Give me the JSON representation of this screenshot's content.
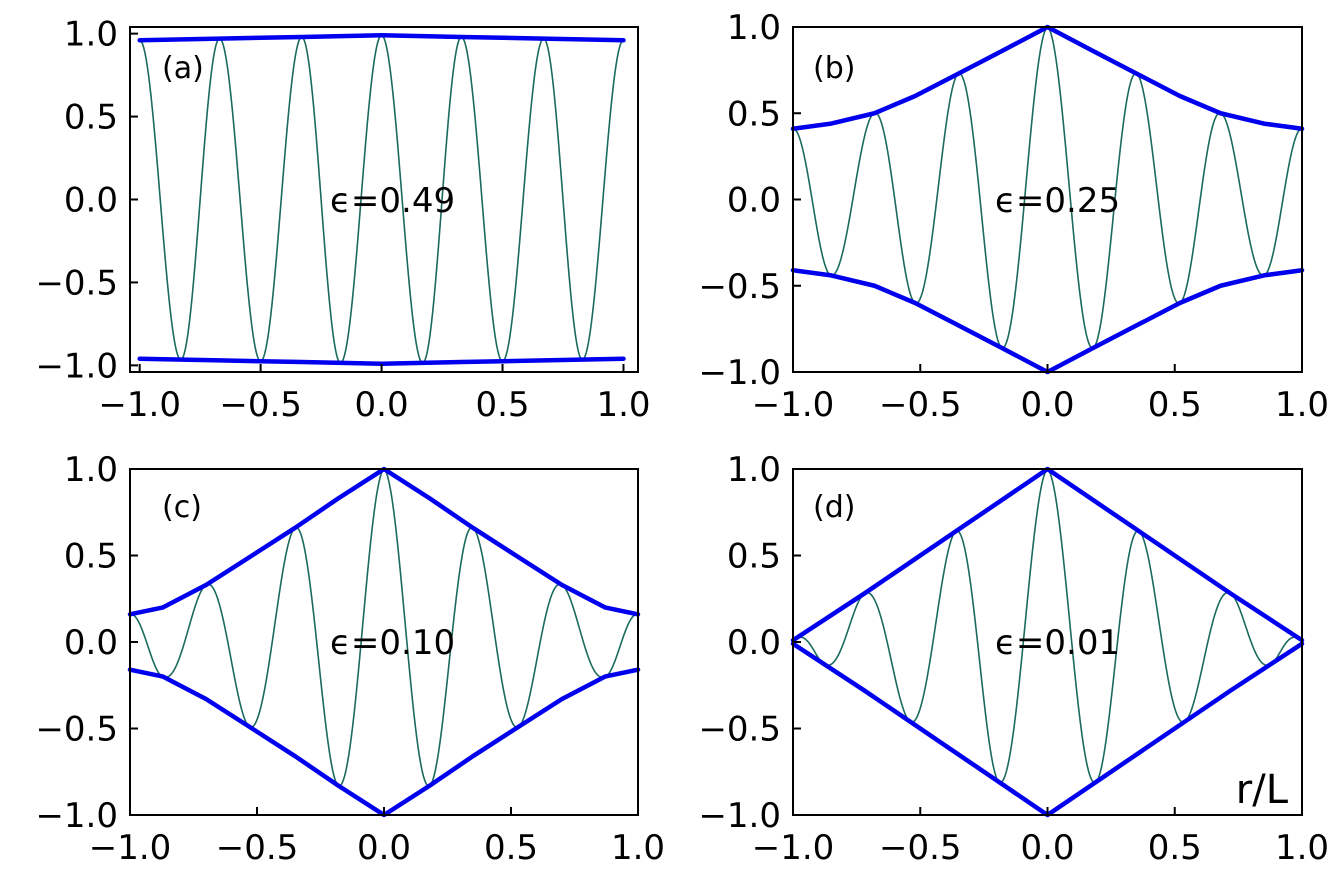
{
  "chart_data": [
    {
      "type": "line",
      "panel_label": "(a)",
      "annotation": "ϵ=0.49",
      "epsilon": 0.49,
      "xlabel": "",
      "ylabel": "",
      "xlim": [
        -1.0,
        1.0
      ],
      "ylim": [
        -1.0,
        1.0
      ],
      "xticks": [
        "−1.0",
        "−0.5",
        "0.0",
        "0.5",
        "1.0"
      ],
      "yticks": [
        "1.0",
        "0.5",
        "0.0",
        "−0.5",
        "−1.0"
      ],
      "oscillation_extrema_x": [
        -1.0,
        -0.83,
        -0.67,
        -0.5,
        -0.33,
        -0.17,
        0.0,
        0.17,
        0.33,
        0.5,
        0.67,
        0.83,
        1.0
      ],
      "series": [
        {
          "role": "envelope-upper",
          "x": [
            -1.0,
            -0.67,
            -0.33,
            0.0,
            0.33,
            0.67,
            1.0
          ],
          "y": [
            0.96,
            0.97,
            0.98,
            0.99,
            0.98,
            0.97,
            0.96
          ]
        },
        {
          "role": "envelope-lower",
          "x": [
            -1.0,
            -0.67,
            -0.33,
            0.0,
            0.33,
            0.67,
            1.0
          ],
          "y": [
            -0.96,
            -0.97,
            -0.98,
            -0.99,
            -0.98,
            -0.97,
            -0.96
          ]
        }
      ]
    },
    {
      "type": "line",
      "panel_label": "(b)",
      "annotation": "ϵ=0.25",
      "epsilon": 0.25,
      "xlabel": "",
      "ylabel": "",
      "xlim": [
        -1.0,
        1.0
      ],
      "ylim": [
        -1.0,
        1.0
      ],
      "xticks": [
        "−1.0",
        "−0.5",
        "0.0",
        "0.5",
        "1.0"
      ],
      "yticks": [
        "1.0",
        "0.5",
        "0.0",
        "−0.5",
        "−1.0"
      ],
      "oscillation_extrema_x": [
        -1.0,
        -0.85,
        -0.68,
        -0.52,
        -0.35,
        -0.18,
        0.0,
        0.18,
        0.35,
        0.52,
        0.68,
        0.85,
        1.0
      ],
      "series": [
        {
          "role": "envelope-upper",
          "x": [
            -1.0,
            -0.85,
            -0.68,
            -0.52,
            -0.35,
            -0.18,
            0.0,
            0.18,
            0.35,
            0.52,
            0.68,
            0.85,
            1.0
          ],
          "y": [
            0.41,
            0.44,
            0.5,
            0.6,
            0.73,
            0.86,
            1.0,
            0.86,
            0.73,
            0.6,
            0.5,
            0.44,
            0.41
          ]
        },
        {
          "role": "envelope-lower",
          "x": [
            -1.0,
            -0.85,
            -0.68,
            -0.52,
            -0.35,
            -0.18,
            0.0,
            0.18,
            0.35,
            0.52,
            0.68,
            0.85,
            1.0
          ],
          "y": [
            -0.41,
            -0.44,
            -0.5,
            -0.6,
            -0.73,
            -0.86,
            -1.0,
            -0.86,
            -0.73,
            -0.6,
            -0.5,
            -0.44,
            -0.41
          ]
        }
      ]
    },
    {
      "type": "line",
      "panel_label": "(c)",
      "annotation": "ϵ=0.10",
      "epsilon": 0.1,
      "xlabel": "",
      "ylabel": "",
      "xlim": [
        -1.0,
        1.0
      ],
      "ylim": [
        -1.0,
        1.0
      ],
      "xticks": [
        "−1.0",
        "−0.5",
        "0.0",
        "0.5",
        "1.0"
      ],
      "yticks": [
        "1.0",
        "0.5",
        "0.0",
        "−0.5",
        "−1.0"
      ],
      "oscillation_extrema_x": [
        -1.0,
        -0.87,
        -0.7,
        -0.53,
        -0.35,
        -0.18,
        0.0,
        0.18,
        0.35,
        0.53,
        0.7,
        0.87,
        1.0
      ],
      "series": [
        {
          "role": "envelope-upper",
          "x": [
            -1.0,
            -0.87,
            -0.7,
            -0.53,
            -0.35,
            -0.18,
            0.0,
            0.18,
            0.35,
            0.53,
            0.7,
            0.87,
            1.0
          ],
          "y": [
            0.16,
            0.2,
            0.33,
            0.49,
            0.66,
            0.83,
            1.0,
            0.83,
            0.66,
            0.49,
            0.33,
            0.2,
            0.16
          ]
        },
        {
          "role": "envelope-lower",
          "x": [
            -1.0,
            -0.87,
            -0.7,
            -0.53,
            -0.35,
            -0.18,
            0.0,
            0.18,
            0.35,
            0.53,
            0.7,
            0.87,
            1.0
          ],
          "y": [
            -0.16,
            -0.2,
            -0.33,
            -0.49,
            -0.66,
            -0.83,
            -1.0,
            -0.83,
            -0.66,
            -0.49,
            -0.33,
            -0.2,
            -0.16
          ]
        }
      ]
    },
    {
      "type": "line",
      "panel_label": "(d)",
      "annotation": "ϵ=0.01",
      "epsilon": 0.01,
      "xlabel": "r/L",
      "ylabel": "",
      "xlim": [
        -1.0,
        1.0
      ],
      "ylim": [
        -1.0,
        1.0
      ],
      "xticks": [
        "−1.0",
        "−0.5",
        "0.0",
        "0.5",
        "1.0"
      ],
      "yticks": [
        "1.0",
        "0.5",
        "0.0",
        "−0.5",
        "−1.0"
      ],
      "oscillation_extrema_x": [
        -1.0,
        -0.88,
        -0.72,
        -0.54,
        -0.36,
        -0.19,
        0.0,
        0.19,
        0.36,
        0.54,
        0.72,
        0.88,
        1.0
      ],
      "series": [
        {
          "role": "envelope-upper",
          "x": [
            -1.0,
            -0.72,
            -0.36,
            0.0,
            0.36,
            0.72,
            1.0
          ],
          "y": [
            0.01,
            0.28,
            0.64,
            1.0,
            0.64,
            0.28,
            0.01
          ]
        },
        {
          "role": "envelope-lower",
          "x": [
            -1.0,
            -0.72,
            -0.36,
            0.0,
            0.36,
            0.72,
            1.0
          ],
          "y": [
            -0.01,
            -0.28,
            -0.64,
            -1.0,
            -0.64,
            -0.28,
            -0.01
          ]
        }
      ]
    }
  ],
  "colors": {
    "envelope": "#0000ee",
    "oscillation": "#1a6b5e",
    "axes": "#000000",
    "background": "#ffffff"
  }
}
